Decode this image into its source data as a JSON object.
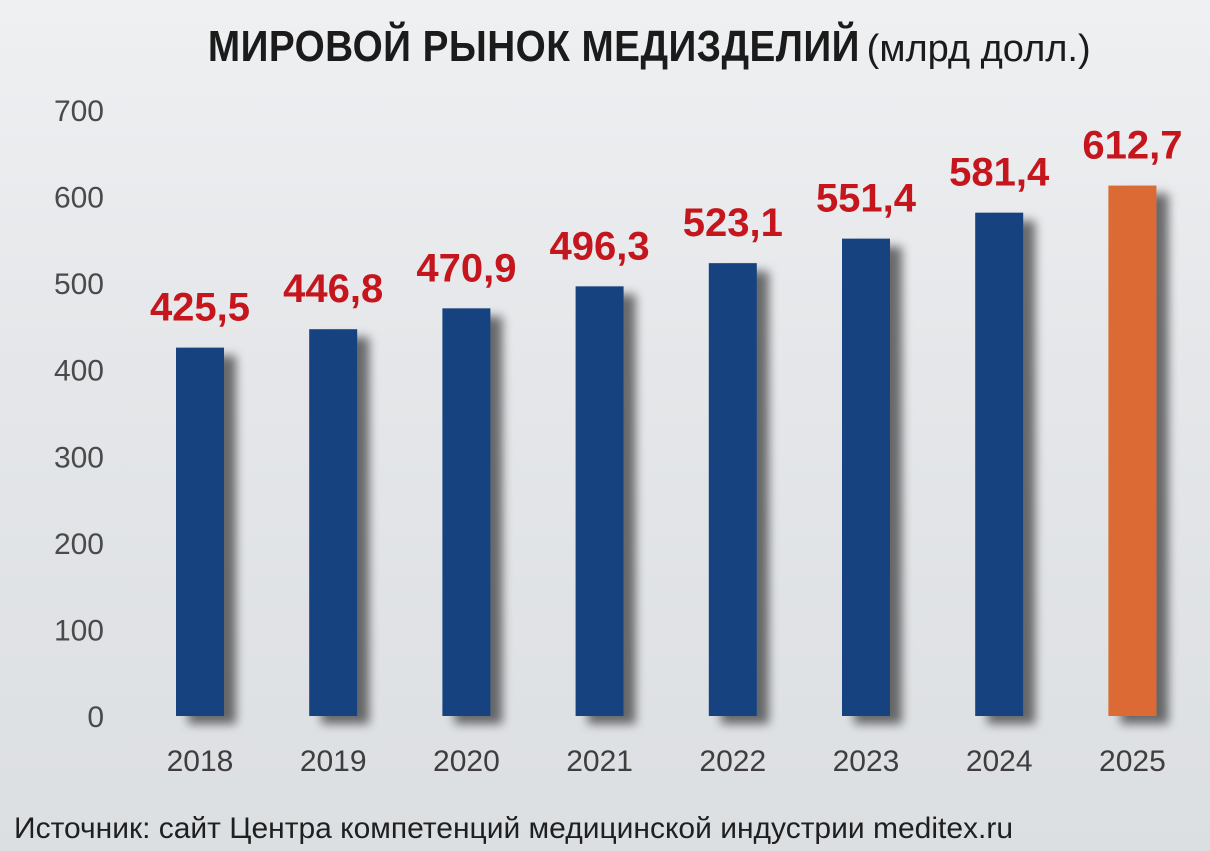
{
  "header": {
    "title_main": "МИРОВОЙ РЫНОК МЕДИЗДЕЛИЙ",
    "title_unit": "(млрд долл.)"
  },
  "footer": {
    "source": "Источник: сайт Центра компетенций медицинской индустрии meditex.ru"
  },
  "colors": {
    "bar_default": "#14427f",
    "bar_highlight": "#db6b35",
    "data_label": "#c4161c"
  },
  "chart_data": {
    "type": "bar",
    "categories": [
      "2018",
      "2019",
      "2020",
      "2021",
      "2022",
      "2023",
      "2024",
      "2025"
    ],
    "values": [
      425.5,
      446.8,
      470.9,
      496.3,
      523.1,
      551.4,
      581.4,
      612.7
    ],
    "data_labels": [
      "425,5",
      "446,8",
      "470,9",
      "496,3",
      "523,1",
      "551,4",
      "581,4",
      "612,7"
    ],
    "highlight_category": "2025",
    "ylim": [
      0,
      700
    ],
    "yticks": [
      0,
      100,
      200,
      300,
      400,
      500,
      600,
      700
    ],
    "grid": false,
    "legend": "none"
  }
}
